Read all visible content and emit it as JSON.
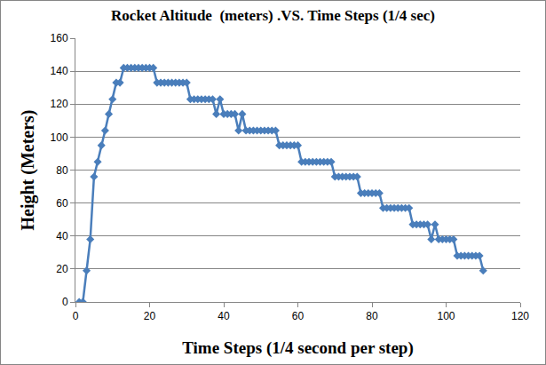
{
  "chart_data": {
    "type": "line",
    "title": "Rocket Altitude  (meters) .VS. Time Steps (1/4 sec)",
    "x_label": "Time Steps (1/4 second per step)",
    "y_label": "Height (Meters)",
    "x": [
      1,
      2,
      3,
      4,
      5,
      6,
      7,
      8,
      9,
      10,
      11,
      12,
      13,
      14,
      15,
      16,
      17,
      18,
      19,
      20,
      21,
      22,
      23,
      24,
      25,
      26,
      27,
      28,
      29,
      30,
      31,
      32,
      33,
      34,
      35,
      36,
      37,
      38,
      39,
      40,
      41,
      42,
      43,
      44,
      45,
      46,
      47,
      48,
      49,
      50,
      51,
      52,
      53,
      54,
      55,
      56,
      57,
      58,
      59,
      60,
      61,
      62,
      63,
      64,
      65,
      66,
      67,
      68,
      69,
      70,
      71,
      72,
      73,
      74,
      75,
      76,
      77,
      78,
      79,
      80,
      81,
      82,
      83,
      84,
      85,
      86,
      87,
      88,
      89,
      90,
      91,
      92,
      93,
      94,
      95,
      96,
      97,
      98,
      99,
      100,
      101,
      102,
      103,
      104,
      105,
      106,
      107,
      108,
      109,
      110
    ],
    "values": [
      0,
      0,
      19,
      38,
      76,
      85,
      95,
      104,
      114,
      123,
      133,
      133,
      142,
      142,
      142,
      142,
      142,
      142,
      142,
      142,
      142,
      133,
      133,
      133,
      133,
      133,
      133,
      133,
      133,
      133,
      123,
      123,
      123,
      123,
      123,
      123,
      123,
      114,
      123,
      114,
      114,
      114,
      114,
      104,
      114,
      104,
      104,
      104,
      104,
      104,
      104,
      104,
      104,
      104,
      95,
      95,
      95,
      95,
      95,
      95,
      85,
      85,
      85,
      85,
      85,
      85,
      85,
      85,
      85,
      76,
      76,
      76,
      76,
      76,
      76,
      76,
      66,
      66,
      66,
      66,
      66,
      66,
      57,
      57,
      57,
      57,
      57,
      57,
      57,
      57,
      47,
      47,
      47,
      47,
      47,
      38,
      47,
      38,
      38,
      38,
      38,
      38,
      28,
      28,
      28,
      28,
      28,
      28,
      28,
      19
    ],
    "color": "#4a7ebb",
    "marker": "diamond",
    "line_style": "solid",
    "xlim": [
      0,
      120
    ],
    "xticks": [
      0,
      20,
      40,
      60,
      80,
      100,
      120
    ],
    "ylim": [
      0,
      160
    ],
    "yticks": [
      0,
      20,
      40,
      60,
      80,
      100,
      120,
      140,
      160
    ],
    "grid": true
  }
}
